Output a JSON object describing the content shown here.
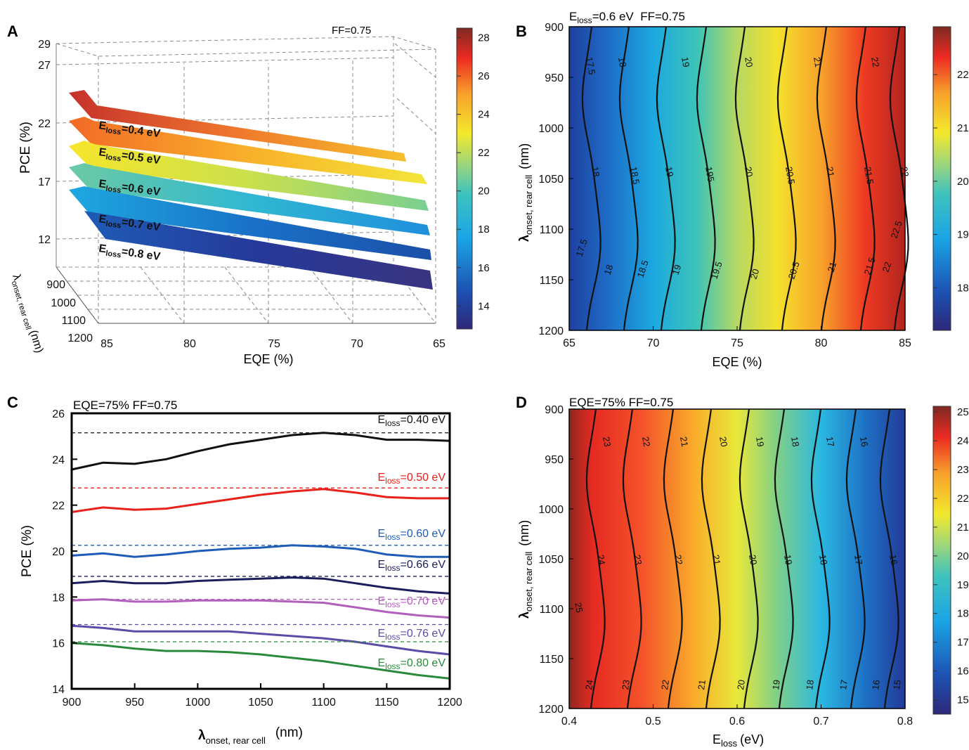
{
  "chart_data": [
    {
      "panel": "A",
      "type": "surface3d",
      "annotation": "FF=0.75",
      "xlabel": "EQE (%)",
      "ylabel": "PCE (%)",
      "depthlabel_main": "λ",
      "depthlabel_sub": "onset, rear cell",
      "depthlabel_unit": "(nm)",
      "x_ticks": [
        "85",
        "80",
        "75",
        "70",
        "65"
      ],
      "y_ticks": [
        "12",
        "17",
        "22",
        "27",
        "29"
      ],
      "depth_ticks": [
        "900",
        "1000",
        "1100",
        "1200"
      ],
      "colorbar_ticks": [
        "14",
        "16",
        "18",
        "20",
        "22",
        "24",
        "26",
        "28"
      ],
      "colorbar_range": [
        12.8,
        28.5
      ],
      "surfaces": [
        {
          "label_main": "E",
          "label_sub": "loss",
          "label_tail": "=0.4 eV",
          "pce_eqe85": 25.2,
          "pce_eqe65": 19.3
        },
        {
          "label_main": "E",
          "label_sub": "loss",
          "label_tail": "=0.5 eV",
          "pce_eqe85": 22.8,
          "pce_eqe65": 17.4
        },
        {
          "label_main": "E",
          "label_sub": "loss",
          "label_tail": "=0.6 eV",
          "pce_eqe85": 20.4,
          "pce_eqe65": 15.6
        },
        {
          "label_main": "E",
          "label_sub": "loss",
          "label_tail": "=0.7 eV",
          "pce_eqe85": 18.1,
          "pce_eqe65": 13.8
        },
        {
          "label_main": "E",
          "label_sub": "loss",
          "label_tail": "=0.8 eV",
          "pce_eqe85": 16.0,
          "pce_eqe65": 12.2
        }
      ]
    },
    {
      "panel": "B",
      "type": "heatmap",
      "title_main": "E",
      "title_sub": "loss",
      "title_tail": "=0.6 eV  FF=0.75",
      "xlabel": "EQE (%)",
      "ylabel_main": "λ",
      "ylabel_sub": "onset, rear cell",
      "ylabel_unit": "(nm)",
      "xlim": [
        65,
        85
      ],
      "ylim": [
        900,
        1200
      ],
      "x_ticks": [
        65,
        70,
        75,
        80,
        85
      ],
      "y_ticks": [
        900,
        950,
        1000,
        1050,
        1100,
        1150,
        1200
      ],
      "colorbar_ticks": [
        18,
        19,
        20,
        21,
        22
      ],
      "colorbar_range": [
        17.2,
        22.9
      ],
      "contour_labels_top": [
        "17.5",
        "18",
        "19",
        "20",
        "21",
        "22"
      ],
      "contour_labels_mid": [
        "18",
        "18.5",
        "19",
        "195",
        "20",
        "20.5",
        "21",
        "21.5",
        "22"
      ],
      "contour_labels_bottom": [
        "17.5",
        "18",
        "18.5",
        "19",
        "19.5",
        "20",
        "20.5",
        "21",
        "21.5",
        "22",
        "22.5"
      ]
    },
    {
      "panel": "C",
      "type": "line",
      "title": "EQE=75% FF=0.75",
      "xlabel_main": "λ",
      "xlabel_sub": "onset, rear cell",
      "xlabel_unit": "(nm)",
      "ylabel": "PCE (%)",
      "xlim": [
        900,
        1200
      ],
      "ylim": [
        14,
        26
      ],
      "x_ticks": [
        900,
        950,
        1000,
        1050,
        1100,
        1150,
        1200
      ],
      "y_ticks": [
        14,
        16,
        18,
        20,
        22,
        24,
        26
      ],
      "x": [
        900,
        925,
        950,
        975,
        1000,
        1025,
        1050,
        1075,
        1100,
        1125,
        1150,
        1175,
        1200
      ],
      "series": [
        {
          "label_main": "E",
          "label_sub": "loss",
          "label_tail": "=0.40 eV",
          "color": "#111111",
          "max": 25.15,
          "values": [
            23.55,
            23.85,
            23.8,
            24.0,
            24.35,
            24.65,
            24.85,
            25.05,
            25.15,
            25.05,
            24.85,
            24.85,
            24.8
          ]
        },
        {
          "label_main": "E",
          "label_sub": "loss",
          "label_tail": "=0.50 eV",
          "color": "#e8211b",
          "max": 22.75,
          "values": [
            21.7,
            21.9,
            21.8,
            21.85,
            22.05,
            22.25,
            22.45,
            22.6,
            22.7,
            22.55,
            22.35,
            22.3,
            22.3
          ]
        },
        {
          "label_main": "E",
          "label_sub": "loss",
          "label_tail": "=0.60 eV",
          "color": "#1f5cb8",
          "max": 20.25,
          "values": [
            19.8,
            19.9,
            19.75,
            19.85,
            20.0,
            20.1,
            20.15,
            20.25,
            20.2,
            20.1,
            19.85,
            19.75,
            19.75
          ]
        },
        {
          "label_main": "E",
          "label_sub": "loss",
          "label_tail": "=0.66 eV",
          "color": "#1b1e5c",
          "max": 18.9,
          "values": [
            18.6,
            18.7,
            18.6,
            18.6,
            18.7,
            18.75,
            18.8,
            18.85,
            18.8,
            18.6,
            18.4,
            18.25,
            18.15
          ]
        },
        {
          "label_main": "E",
          "label_sub": "loss",
          "label_tail": "=0.70 eV",
          "color": "#b25ebd",
          "max": 17.9,
          "values": [
            17.85,
            17.9,
            17.8,
            17.8,
            17.85,
            17.85,
            17.85,
            17.8,
            17.75,
            17.55,
            17.35,
            17.2,
            17.1
          ]
        },
        {
          "label_main": "E",
          "label_sub": "loss",
          "label_tail": "=0.76 eV",
          "color": "#5b4ca8",
          "max": 16.8,
          "values": [
            16.75,
            16.65,
            16.5,
            16.5,
            16.5,
            16.5,
            16.4,
            16.3,
            16.2,
            16.05,
            15.85,
            15.65,
            15.5
          ]
        },
        {
          "label_main": "E",
          "label_sub": "loss",
          "label_tail": "=0.80 eV",
          "color": "#2a8a3c",
          "max": 16.05,
          "values": [
            16.0,
            15.9,
            15.75,
            15.65,
            15.65,
            15.6,
            15.5,
            15.35,
            15.2,
            15.0,
            14.8,
            14.6,
            14.45
          ]
        }
      ]
    },
    {
      "panel": "D",
      "type": "heatmap",
      "title": "EQE=75% FF=0.75",
      "xlabel_main": "E",
      "xlabel_sub": "loss",
      "xlabel_unit": "(eV)",
      "ylabel_main": "λ",
      "ylabel_sub": "onset, rear cell",
      "ylabel_unit": "(nm)",
      "xlim": [
        0.4,
        0.8
      ],
      "ylim": [
        900,
        1200
      ],
      "x_ticks": [
        "0.4",
        "0.5",
        "0.6",
        "0.7",
        "0.8"
      ],
      "y_ticks": [
        900,
        950,
        1000,
        1050,
        1100,
        1150,
        1200
      ],
      "colorbar_ticks": [
        15,
        16,
        17,
        18,
        19,
        20,
        21,
        22,
        23,
        24,
        25
      ],
      "colorbar_range": [
        14.5,
        25.2
      ],
      "contour_labels_top": [
        "23",
        "22",
        "21",
        "20",
        "19",
        "18",
        "17",
        "16"
      ],
      "contour_labels_mid": [
        "24",
        "23",
        "22",
        "21",
        "20",
        "19",
        "18",
        "17",
        "16"
      ],
      "contour_labels_bottom": [
        "24",
        "23",
        "22",
        "21",
        "20",
        "19",
        "18",
        "17",
        "16",
        "15"
      ],
      "contour_label_left": "25"
    }
  ],
  "panel_letters": [
    "A",
    "B",
    "C",
    "D"
  ],
  "colors": {
    "jet": [
      "#2a2a80",
      "#1d56b0",
      "#1aa0e0",
      "#3ec7c4",
      "#9bd27a",
      "#f2ea2c",
      "#f8a52a",
      "#ed2c25",
      "#8e2820"
    ],
    "axis": "#000000"
  }
}
